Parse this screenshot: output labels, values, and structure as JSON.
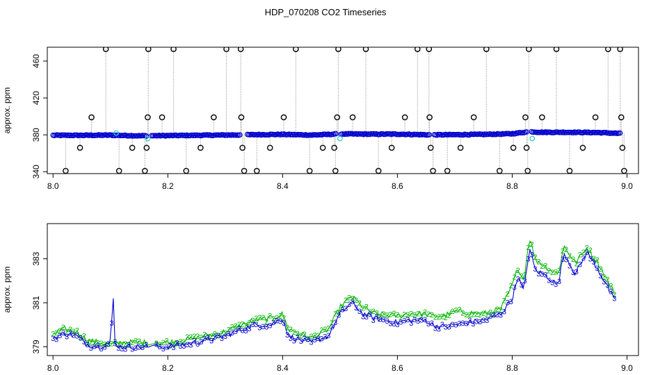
{
  "title": "HDP_070208  CO2 Timeseries",
  "colors": {
    "primary": "#0000cc",
    "secondary": "#00b400",
    "highlight": "#33cccc",
    "outlier": "#000000",
    "spike": "#888888"
  },
  "chart_data": [
    {
      "type": "scatter",
      "title": "HDP_070208  CO2 Timeseries",
      "xlabel": "",
      "ylabel": "approx. ppm",
      "xlim": [
        7.99,
        9.02
      ],
      "ylim": [
        338,
        475
      ],
      "xticks": [
        "8.0",
        "8.2",
        "8.4",
        "8.6",
        "8.8",
        "9.0"
      ],
      "yticks": [
        "340",
        "380",
        "420",
        "460"
      ],
      "xtick_values": [
        8.0,
        8.2,
        8.4,
        8.6,
        8.8,
        9.0
      ],
      "ytick_values": [
        340,
        380,
        420,
        460
      ],
      "baseline_series": {
        "name": "",
        "x": [
          8.0,
          8.05,
          8.1,
          8.15,
          8.2,
          8.25,
          8.3,
          8.33,
          8.35,
          8.4,
          8.45,
          8.5,
          8.55,
          8.6,
          8.66,
          8.7,
          8.75,
          8.8,
          8.83,
          8.85,
          8.9,
          8.95,
          8.99
        ],
        "y": [
          379.5,
          379.5,
          379.7,
          379.0,
          379.2,
          379.5,
          379.8,
          380.0,
          380.2,
          380.5,
          379.8,
          381.0,
          380.8,
          380.8,
          380.0,
          380.2,
          380.5,
          381.2,
          383.5,
          382.8,
          382.8,
          382.5,
          381.5
        ]
      },
      "highlight_points": [
        {
          "x": 8.11,
          "y": 382
        },
        {
          "x": 8.165,
          "y": 376
        },
        {
          "x": 8.5,
          "y": 376
        },
        {
          "x": 8.835,
          "y": 376
        }
      ],
      "outliers": [
        {
          "x": 8.022,
          "y": 341
        },
        {
          "x": 8.047,
          "y": 366
        },
        {
          "x": 8.067,
          "y": 399
        },
        {
          "x": 8.092,
          "y": 473
        },
        {
          "x": 8.115,
          "y": 341
        },
        {
          "x": 8.138,
          "y": 366
        },
        {
          "x": 8.16,
          "y": 341
        },
        {
          "x": 8.163,
          "y": 366
        },
        {
          "x": 8.165,
          "y": 399
        },
        {
          "x": 8.166,
          "y": 473
        },
        {
          "x": 8.19,
          "y": 399
        },
        {
          "x": 8.21,
          "y": 473
        },
        {
          "x": 8.232,
          "y": 341
        },
        {
          "x": 8.257,
          "y": 366
        },
        {
          "x": 8.28,
          "y": 399
        },
        {
          "x": 8.302,
          "y": 473
        },
        {
          "x": 8.327,
          "y": 473
        },
        {
          "x": 8.328,
          "y": 399
        },
        {
          "x": 8.33,
          "y": 366
        },
        {
          "x": 8.333,
          "y": 341
        },
        {
          "x": 8.355,
          "y": 341
        },
        {
          "x": 8.378,
          "y": 366
        },
        {
          "x": 8.402,
          "y": 399
        },
        {
          "x": 8.423,
          "y": 473
        },
        {
          "x": 8.447,
          "y": 341
        },
        {
          "x": 8.47,
          "y": 366
        },
        {
          "x": 8.49,
          "y": 366
        },
        {
          "x": 8.492,
          "y": 341
        },
        {
          "x": 8.495,
          "y": 399
        },
        {
          "x": 8.497,
          "y": 473
        },
        {
          "x": 8.522,
          "y": 399
        },
        {
          "x": 8.545,
          "y": 473
        },
        {
          "x": 8.567,
          "y": 341
        },
        {
          "x": 8.59,
          "y": 366
        },
        {
          "x": 8.613,
          "y": 399
        },
        {
          "x": 8.635,
          "y": 473
        },
        {
          "x": 8.655,
          "y": 473
        },
        {
          "x": 8.656,
          "y": 399
        },
        {
          "x": 8.658,
          "y": 366
        },
        {
          "x": 8.662,
          "y": 341
        },
        {
          "x": 8.687,
          "y": 341
        },
        {
          "x": 8.71,
          "y": 366
        },
        {
          "x": 8.733,
          "y": 399
        },
        {
          "x": 8.755,
          "y": 473
        },
        {
          "x": 8.778,
          "y": 341
        },
        {
          "x": 8.802,
          "y": 366
        },
        {
          "x": 8.823,
          "y": 399
        },
        {
          "x": 8.825,
          "y": 366
        },
        {
          "x": 8.827,
          "y": 341
        },
        {
          "x": 8.829,
          "y": 473
        },
        {
          "x": 8.852,
          "y": 399
        },
        {
          "x": 8.877,
          "y": 473
        },
        {
          "x": 8.9,
          "y": 341
        },
        {
          "x": 8.923,
          "y": 366
        },
        {
          "x": 8.945,
          "y": 399
        },
        {
          "x": 8.967,
          "y": 473
        },
        {
          "x": 8.988,
          "y": 473
        },
        {
          "x": 8.99,
          "y": 399
        },
        {
          "x": 8.992,
          "y": 366
        },
        {
          "x": 8.995,
          "y": 341
        }
      ]
    },
    {
      "type": "line",
      "title": "",
      "xlabel": "",
      "ylabel": "approx. ppm",
      "xlim": [
        7.99,
        9.02
      ],
      "ylim": [
        378.6,
        384.6
      ],
      "xticks": [
        "8.0",
        "8.2",
        "8.4",
        "8.6",
        "8.8",
        "9.0"
      ],
      "yticks": [
        "379",
        "381",
        "383"
      ],
      "xtick_values": [
        8.0,
        8.2,
        8.4,
        8.6,
        8.8,
        9.0
      ],
      "ytick_values": [
        379,
        381,
        383
      ],
      "series": [
        {
          "name": "",
          "marker": "3",
          "x": [
            8.0,
            8.02,
            8.04,
            8.06,
            8.08,
            8.1,
            8.105,
            8.108,
            8.12,
            8.14,
            8.16,
            8.165,
            8.2,
            8.25,
            8.3,
            8.33,
            8.35,
            8.38,
            8.4,
            8.41,
            8.43,
            8.45,
            8.48,
            8.5,
            8.52,
            8.54,
            8.56,
            8.6,
            8.62,
            8.65,
            8.66,
            8.68,
            8.7,
            8.75,
            8.78,
            8.8,
            8.81,
            8.82,
            8.83,
            8.84,
            8.86,
            8.88,
            8.89,
            8.91,
            8.93,
            8.95,
            8.97,
            8.98
          ],
          "y": [
            379.4,
            379.6,
            379.5,
            379.1,
            379.0,
            379.2,
            381.2,
            379.1,
            379.0,
            379.0,
            379.0,
            379.0,
            379.0,
            379.2,
            379.5,
            379.8,
            380.0,
            380.0,
            380.3,
            379.5,
            379.3,
            379.2,
            379.5,
            380.5,
            381.0,
            380.5,
            380.3,
            380.1,
            380.2,
            380.2,
            380.0,
            379.9,
            380.0,
            380.2,
            380.5,
            381.2,
            382.2,
            381.5,
            383.5,
            382.5,
            382.2,
            381.8,
            383.3,
            382.3,
            383.3,
            382.5,
            381.5,
            381.0
          ]
        },
        {
          "name": "",
          "marker": "2",
          "x": [
            8.0,
            8.02,
            8.04,
            8.06,
            8.08,
            8.1,
            8.12,
            8.14,
            8.16,
            8.165,
            8.2,
            8.25,
            8.3,
            8.33,
            8.35,
            8.38,
            8.4,
            8.41,
            8.43,
            8.45,
            8.48,
            8.5,
            8.52,
            8.54,
            8.56,
            8.6,
            8.62,
            8.65,
            8.66,
            8.68,
            8.7,
            8.75,
            8.78,
            8.8,
            8.81,
            8.82,
            8.83,
            8.84,
            8.86,
            8.88,
            8.89,
            8.91,
            8.93,
            8.95,
            8.97,
            8.98
          ],
          "y": [
            379.6,
            379.8,
            379.7,
            379.3,
            379.2,
            379.1,
            379.2,
            379.2,
            379.2,
            379.2,
            379.2,
            379.4,
            379.7,
            380.0,
            380.2,
            380.3,
            380.5,
            379.8,
            379.6,
            379.4,
            379.8,
            380.8,
            381.3,
            380.8,
            380.5,
            380.4,
            380.5,
            380.5,
            380.4,
            380.4,
            380.6,
            380.5,
            380.7,
            381.8,
            382.6,
            382.0,
            384.0,
            383.0,
            382.6,
            382.3,
            383.6,
            382.8,
            383.5,
            382.8,
            381.8,
            381.4
          ]
        }
      ]
    }
  ]
}
